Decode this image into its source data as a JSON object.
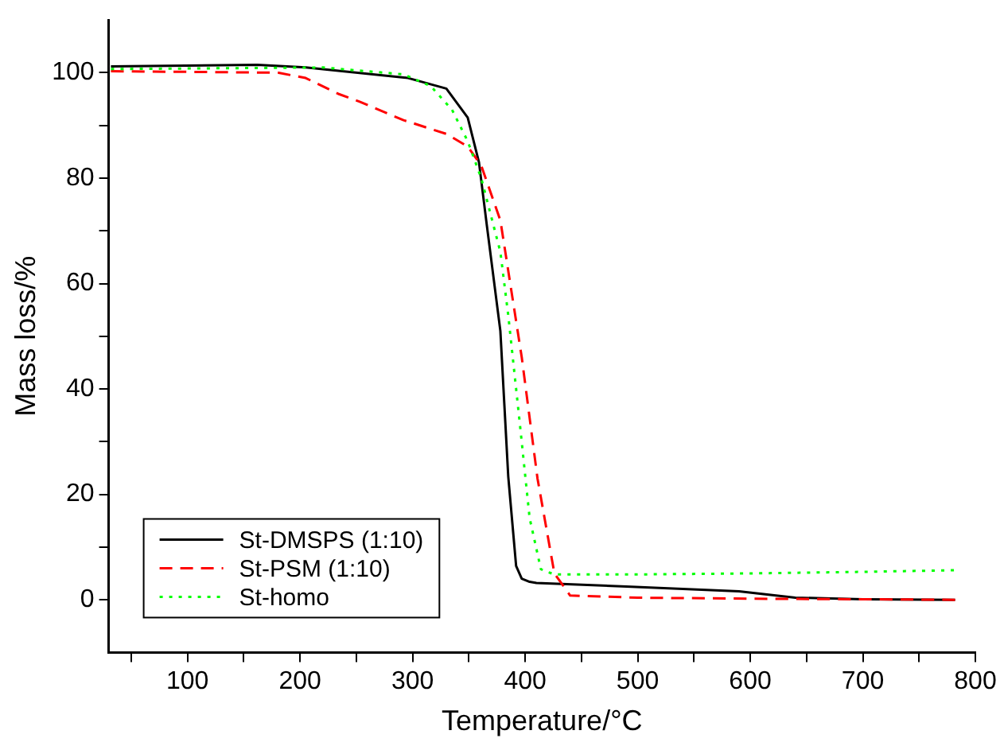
{
  "chart_data": {
    "type": "line",
    "xlabel": "Temperature/°C",
    "ylabel": "Mass loss/%",
    "xlim": [
      30,
      800
    ],
    "ylim": [
      -10,
      110
    ],
    "xticks": [
      {
        "value": 50,
        "label": null
      },
      100,
      {
        "value": 150,
        "label": null
      },
      200,
      {
        "value": 250,
        "label": null
      },
      300,
      {
        "value": 350,
        "label": null
      },
      400,
      {
        "value": 450,
        "label": null
      },
      500,
      {
        "value": 550,
        "label": null
      },
      600,
      {
        "value": 650,
        "label": null
      },
      700,
      {
        "value": 750,
        "label": null
      },
      800
    ],
    "yticks": [
      0,
      {
        "value": 10,
        "label": null
      },
      20,
      {
        "value": 30,
        "label": null
      },
      40,
      {
        "value": 50,
        "label": null
      },
      60,
      {
        "value": 70,
        "label": null
      },
      80,
      {
        "value": 90,
        "label": null
      },
      100
    ],
    "grid": false,
    "legend": "bottom left",
    "marker": "none",
    "series": [
      {
        "name": "St-DMSPS (1:10)",
        "color": "#000000",
        "line_style": "solid",
        "x": [
          32,
          162,
          205,
          296,
          330,
          349,
          359,
          366,
          378,
          385,
          392,
          397,
          404,
          410,
          490,
          590,
          640,
          700,
          782
        ],
        "values": [
          101.2,
          101.5,
          101,
          99,
          97,
          91.5,
          83,
          71,
          51,
          23.4,
          6.4,
          4,
          3.4,
          3.2,
          2.5,
          1.6,
          0.4,
          0.1,
          0
        ]
      },
      {
        "name": "St-PSM (1:10)",
        "color": "#ff0000",
        "line_style": "dashed",
        "x": [
          32,
          181,
          205,
          234,
          253,
          292,
          330,
          349,
          361,
          378,
          397,
          411,
          426,
          440,
          500,
          600,
          700,
          782
        ],
        "values": [
          100.3,
          100,
          99,
          96,
          94.5,
          91,
          88.4,
          86,
          82.4,
          72,
          46,
          23,
          5,
          0.8,
          0.4,
          0.2,
          0.1,
          0
        ]
      },
      {
        "name": "St-homo",
        "color": "#00ff00",
        "line_style": "dotted",
        "x": [
          32,
          220,
          292,
          316,
          335,
          349,
          361,
          378,
          385,
          395,
          404,
          414,
          426,
          493,
          600,
          700,
          781
        ],
        "values": [
          100.7,
          101,
          99.7,
          97.5,
          93,
          87,
          80,
          66,
          54,
          34,
          15.5,
          5.8,
          4.8,
          4.8,
          5,
          5.3,
          5.6
        ]
      }
    ]
  }
}
